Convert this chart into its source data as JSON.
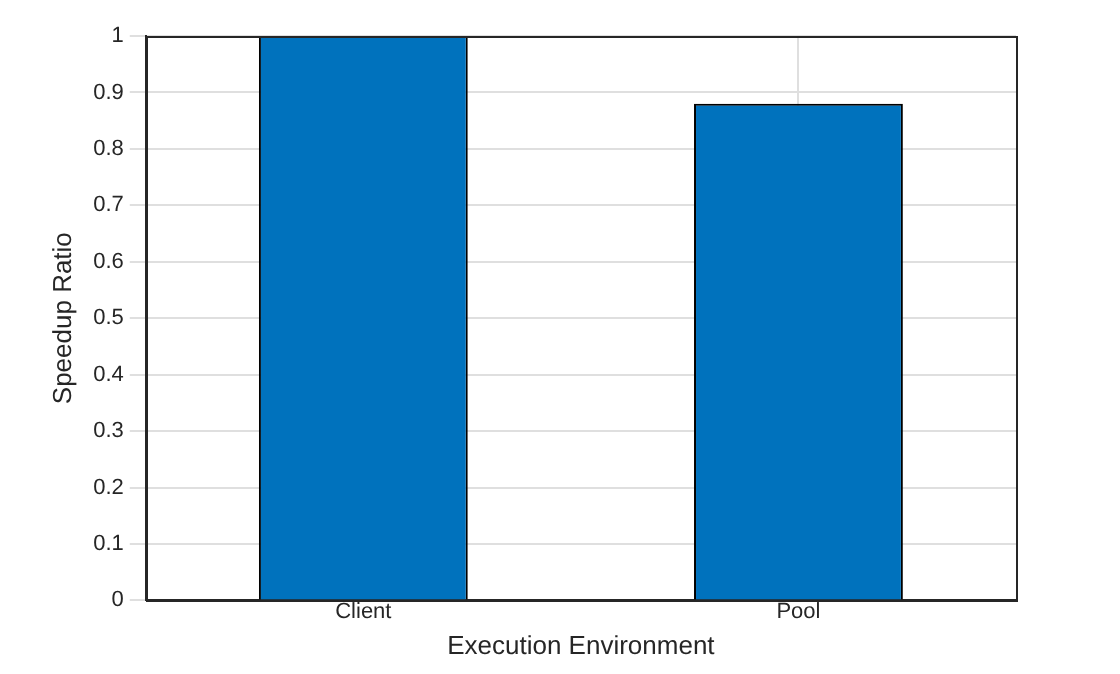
{
  "chart_data": {
    "type": "bar",
    "xlabel": "Execution Environment",
    "ylabel": "Speedup Ratio",
    "categories": [
      "Client",
      "Pool"
    ],
    "values": [
      1,
      0.88
    ],
    "color": "#0072bd",
    "ylim": [
      0,
      1
    ],
    "yticks": [
      0,
      0.1,
      0.2,
      0.3,
      0.4,
      0.5,
      0.6,
      0.7,
      0.8,
      0.9,
      1
    ],
    "grid": true
  }
}
